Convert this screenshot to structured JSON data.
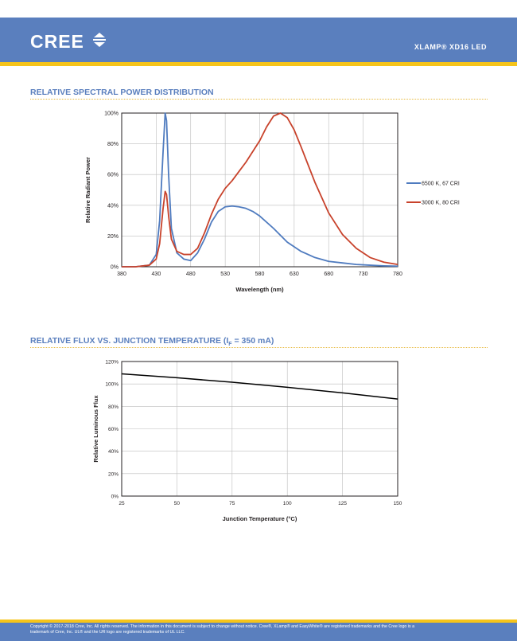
{
  "header": {
    "logo_text": "CREE",
    "product": "XLAMP® XD16 LED",
    "colors": {
      "bar": "#5a7fbe",
      "stripe": "#f6c41a"
    }
  },
  "sections": [
    {
      "title": "RELATIVE SPECTRAL POWER DISTRIBUTION"
    },
    {
      "title_main": "RELATIVE FLUX VS. JUNCTION TEMPERATURE (I",
      "title_sub": "F",
      "title_tail": " = 350 mA)"
    }
  ],
  "chart_data": [
    {
      "type": "line",
      "xlabel": "Wavelength (nm)",
      "ylabel": "Relative Radiant Power",
      "xlim": [
        380,
        780
      ],
      "ylim": [
        0,
        100
      ],
      "x_ticks": [
        380,
        430,
        480,
        530,
        580,
        630,
        680,
        730,
        780
      ],
      "y_ticks": [
        "0%",
        "20%",
        "40%",
        "60%",
        "80%",
        "100%"
      ],
      "grid": true,
      "legend_position": "right",
      "series": [
        {
          "name": "6500 K, 67 CRI",
          "color": "#4f7bbf",
          "x": [
            380,
            400,
            420,
            430,
            435,
            440,
            443,
            445,
            448,
            452,
            460,
            470,
            480,
            490,
            500,
            510,
            520,
            530,
            540,
            550,
            560,
            570,
            580,
            600,
            620,
            640,
            660,
            680,
            700,
            720,
            740,
            760,
            780
          ],
          "y": [
            0,
            0,
            1,
            8,
            30,
            75,
            100,
            95,
            60,
            25,
            9,
            5,
            4,
            9,
            18,
            29,
            36,
            39,
            39.5,
            39,
            38,
            36,
            33,
            25,
            16,
            10,
            6,
            3.5,
            2.5,
            1.5,
            1,
            0.6,
            0.4
          ]
        },
        {
          "name": "3000 K, 80 CRI",
          "color": "#c8422b",
          "x": [
            380,
            400,
            420,
            430,
            435,
            440,
            443,
            445,
            448,
            452,
            460,
            470,
            480,
            490,
            500,
            510,
            520,
            530,
            540,
            550,
            560,
            570,
            580,
            590,
            600,
            610,
            620,
            630,
            640,
            660,
            680,
            700,
            720,
            740,
            760,
            780
          ],
          "y": [
            0,
            0,
            1,
            5,
            15,
            38,
            49,
            47,
            33,
            18,
            10,
            8,
            8,
            12,
            22,
            34,
            44,
            51,
            56,
            62,
            68,
            75,
            82,
            91,
            98,
            100,
            97,
            89,
            78,
            55,
            35,
            21,
            12,
            6,
            3,
            1.5
          ]
        }
      ]
    },
    {
      "type": "line",
      "xlabel": "Junction Temperature (°C)",
      "ylabel": "Relative Luminous Flux",
      "xlim": [
        25,
        150
      ],
      "ylim": [
        0,
        120
      ],
      "x_ticks": [
        25,
        50,
        75,
        100,
        125,
        150
      ],
      "y_ticks": [
        "0%",
        "20%",
        "40%",
        "60%",
        "80%",
        "100%",
        "120%"
      ],
      "grid": true,
      "series": [
        {
          "color": "#000000",
          "x": [
            25,
            50,
            75,
            100,
            125,
            150
          ],
          "y": [
            109,
            105.5,
            101.5,
            97,
            92,
            86.5
          ]
        }
      ]
    }
  ],
  "footer": {
    "line1": "Copyright © 2017-2018 Cree, Inc. All rights reserved. The information in this document is subject to change without notice. Cree®, XLamp® and EasyWhite® are registered trademarks and the Cree logo is a",
    "line2": "trademark of Cree, Inc. UL® and the UR logo are registered trademarks of UL LLC."
  }
}
